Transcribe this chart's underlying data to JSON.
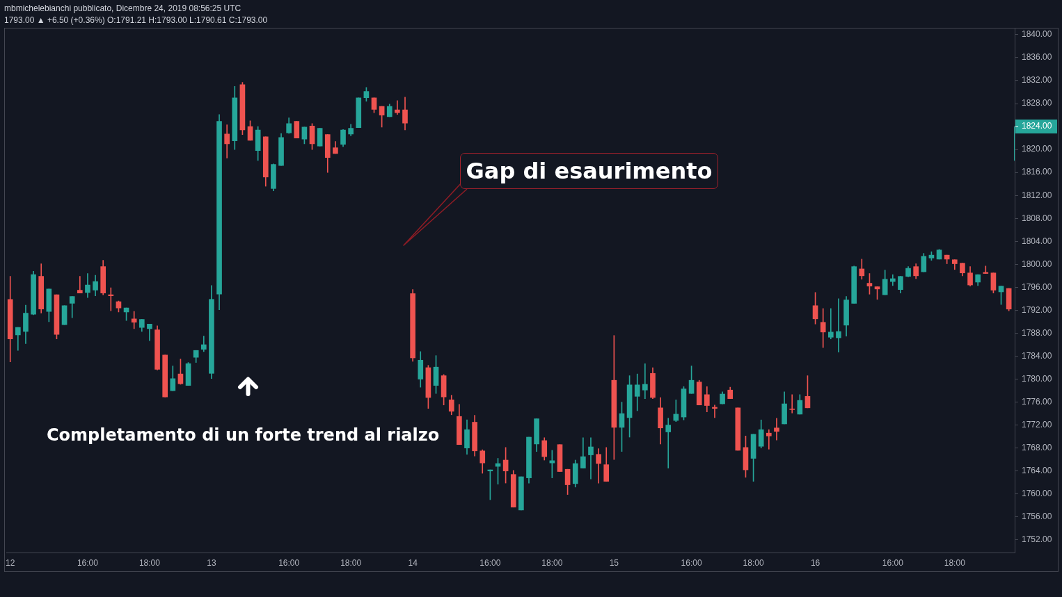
{
  "chart_data": {
    "type": "candlestick",
    "title": "mbmichelebianchi pubblicato, Dicembre 24, 2019 08:56:25 UTC",
    "subtitle": "1793.00 ▲ +6.50 (+0.36%) O:1791.21 H:1793.00 L:1790.61 C:1793.00",
    "annotations": [
      "Gap di esaurimento",
      "Completamento di un forte trend al rialzo"
    ],
    "categories": [
      "12",
      null,
      null,
      null,
      null,
      null,
      null,
      null,
      null,
      null,
      "16:00",
      null,
      null,
      null,
      null,
      null,
      null,
      null,
      "18:00",
      null,
      null,
      null,
      null,
      null,
      null,
      null,
      "13",
      null,
      null,
      null,
      null,
      null,
      null,
      null,
      null,
      null,
      "16:00",
      null,
      null,
      null,
      null,
      null,
      null,
      null,
      "18:00",
      null,
      null,
      null,
      null,
      null,
      null,
      null,
      "14",
      null,
      null,
      null,
      null,
      null,
      null,
      null,
      null,
      null,
      "16:00",
      null,
      null,
      null,
      null,
      null,
      null,
      null,
      "18:00",
      null,
      null,
      null,
      null,
      null,
      null,
      null,
      "15",
      null,
      null,
      null,
      null,
      null,
      null,
      null,
      null,
      null,
      "16:00",
      null,
      null,
      null,
      null,
      null,
      null,
      null,
      "18:00",
      null,
      null,
      null,
      null,
      null,
      null,
      null,
      "16",
      null,
      null,
      null,
      null,
      null,
      null,
      null,
      null,
      null,
      "16:00",
      null,
      null,
      null,
      null,
      null,
      null,
      null,
      "18:00",
      null,
      null,
      null,
      null,
      null,
      null,
      null,
      null
    ],
    "ohlc": [
      [
        1793.9,
        1797.9,
        1783.0,
        1787.0
      ],
      [
        1787.7,
        1789.0,
        1785.0,
        1789.0
      ],
      [
        1788.3,
        1792.9,
        1786.2,
        1791.5
      ],
      [
        1791.3,
        1798.8,
        1791.2,
        1798.2
      ],
      [
        1797.9,
        1800.1,
        1791.5,
        1792.2
      ],
      [
        1791.8,
        1795.7,
        1790.0,
        1795.7
      ],
      [
        1794.7,
        1794.7,
        1787.0,
        1787.8
      ],
      [
        1789.5,
        1792.8,
        1789.5,
        1792.8
      ],
      [
        1793.2,
        1794.4,
        1790.7,
        1794.4
      ],
      [
        1795.5,
        1797.9,
        1795.0,
        1795.0
      ],
      [
        1795.1,
        1798.4,
        1794.2,
        1796.4
      ],
      [
        1795.5,
        1798.1,
        1794.5,
        1797.0
      ],
      [
        1799.6,
        1800.7,
        1794.7,
        1795.0
      ],
      [
        1794.7,
        1795.9,
        1791.9,
        1794.5
      ],
      [
        1793.5,
        1793.6,
        1791.7,
        1792.4
      ],
      [
        1791.7,
        1792.4,
        1790.2,
        1792.4
      ],
      [
        1790.5,
        1791.8,
        1788.8,
        1789.9
      ],
      [
        1789.0,
        1790.4,
        1788.3,
        1790.4
      ],
      [
        1788.8,
        1789.6,
        1786.7,
        1789.6
      ],
      [
        1788.6,
        1789.3,
        1781.6,
        1781.7
      ],
      [
        1784.2,
        1784.2,
        1776.9,
        1776.9
      ],
      [
        1778.0,
        1782.3,
        1778.0,
        1780.1
      ],
      [
        1780.9,
        1783.5,
        1779.1,
        1779.2
      ],
      [
        1778.9,
        1782.9,
        1778.9,
        1782.7
      ],
      [
        1783.8,
        1785.0,
        1782.9,
        1785.0
      ],
      [
        1785.2,
        1787.5,
        1784.8,
        1786.0
      ],
      [
        1781.0,
        1796.3,
        1780.1,
        1793.9
      ],
      [
        1794.8,
        1826.1,
        1792.1,
        1824.9
      ],
      [
        1822.7,
        1824.3,
        1818.5,
        1821.0
      ],
      [
        1821.5,
        1831.0,
        1820.0,
        1829.0
      ],
      [
        1831.3,
        1831.7,
        1822.6,
        1823.4
      ],
      [
        1824.0,
        1825.0,
        1821.6,
        1821.6
      ],
      [
        1819.8,
        1824.0,
        1818.1,
        1823.4
      ],
      [
        1822.2,
        1822.2,
        1813.6,
        1815.2
      ],
      [
        1813.2,
        1817.5,
        1812.8,
        1817.4
      ],
      [
        1817.2,
        1822.8,
        1817.2,
        1822.1
      ],
      [
        1822.9,
        1825.5,
        1822.8,
        1824.5
      ],
      [
        1824.9,
        1824.9,
        1822.0,
        1822.0
      ],
      [
        1821.8,
        1823.9,
        1821.0,
        1823.9
      ],
      [
        1824.1,
        1824.5,
        1820.0,
        1821.0
      ],
      [
        1820.6,
        1823.7,
        1820.6,
        1823.7
      ],
      [
        1822.6,
        1822.6,
        1816.0,
        1818.6
      ],
      [
        1820.3,
        1821.4,
        1819.3,
        1819.3
      ],
      [
        1820.9,
        1823.5,
        1820.5,
        1823.4
      ],
      [
        1822.7,
        1824.4,
        1822.4,
        1823.7
      ],
      [
        1823.8,
        1829.0,
        1823.8,
        1829.0
      ],
      [
        1829.0,
        1830.8,
        1828.4,
        1830.1
      ],
      [
        1829.0,
        1829.0,
        1826.4,
        1827.0
      ],
      [
        1827.5,
        1827.5,
        1823.9,
        1826.0
      ],
      [
        1825.7,
        1827.9,
        1825.7,
        1827.5
      ],
      [
        1826.9,
        1828.5,
        1826.1,
        1826.4
      ],
      [
        1826.9,
        1829.1,
        1823.4,
        1824.6
      ],
      [
        1794.9,
        1795.6,
        1783.1,
        1783.7
      ],
      [
        1780.0,
        1784.8,
        1778.6,
        1783.3
      ],
      [
        1782.0,
        1782.4,
        1774.9,
        1776.8
      ],
      [
        1778.9,
        1784.1,
        1777.5,
        1782.1
      ],
      [
        1780.6,
        1780.8,
        1775.5,
        1776.9
      ],
      [
        1776.4,
        1777.2,
        1773.8,
        1774.4
      ],
      [
        1773.5,
        1775.6,
        1768.6,
        1768.6
      ],
      [
        1768.0,
        1772.9,
        1766.9,
        1771.2
      ],
      [
        1772.5,
        1773.7,
        1766.6,
        1767.5
      ],
      [
        1767.5,
        1767.7,
        1763.6,
        1765.4
      ],
      [
        1764.0,
        1764.2,
        1759.0,
        1764.2
      ],
      [
        1764.8,
        1766.2,
        1761.7,
        1765.3
      ],
      [
        1765.9,
        1768.1,
        1761.9,
        1764.0
      ],
      [
        1763.4,
        1764.1,
        1757.7,
        1757.7
      ],
      [
        1757.2,
        1763.0,
        1757.2,
        1763.0
      ],
      [
        1762.8,
        1769.9,
        1761.9,
        1769.9
      ],
      [
        1768.7,
        1773.1,
        1767.4,
        1773.1
      ],
      [
        1769.3,
        1769.8,
        1765.9,
        1766.5
      ],
      [
        1765.4,
        1767.6,
        1762.8,
        1765.8
      ],
      [
        1768.6,
        1768.6,
        1763.9,
        1763.9
      ],
      [
        1764.3,
        1764.3,
        1759.9,
        1761.6
      ],
      [
        1761.8,
        1765.9,
        1761.2,
        1765.3
      ],
      [
        1764.5,
        1769.8,
        1764.5,
        1766.5
      ],
      [
        1766.8,
        1769.8,
        1762.6,
        1768.2
      ],
      [
        1766.9,
        1767.9,
        1761.9,
        1765.3
      ],
      [
        1765.1,
        1768.1,
        1762.2,
        1762.2
      ],
      [
        1779.8,
        1787.6,
        1766.0,
        1771.6
      ],
      [
        1771.6,
        1776.0,
        1767.4,
        1774.0
      ],
      [
        1773.3,
        1780.6,
        1769.9,
        1779.0
      ],
      [
        1777.0,
        1780.9,
        1774.5,
        1779.0
      ],
      [
        1778.1,
        1782.7,
        1776.6,
        1779.1
      ],
      [
        1781.0,
        1782.0,
        1776.6,
        1776.8
      ],
      [
        1775.0,
        1776.8,
        1768.7,
        1771.5
      ],
      [
        1770.8,
        1773.2,
        1764.5,
        1772.0
      ],
      [
        1772.8,
        1776.4,
        1772.6,
        1773.9
      ],
      [
        1773.4,
        1778.7,
        1772.9,
        1778.3
      ],
      [
        1777.5,
        1782.3,
        1777.5,
        1779.8
      ],
      [
        1779.5,
        1779.8,
        1775.5,
        1775.5
      ],
      [
        1777.3,
        1778.7,
        1774.3,
        1775.4
      ],
      [
        1775.1,
        1775.5,
        1773.3,
        1774.9
      ],
      [
        1775.7,
        1777.8,
        1775.7,
        1777.4
      ],
      [
        1778.1,
        1778.6,
        1776.6,
        1776.6
      ],
      [
        1775.0,
        1775.0,
        1767.6,
        1767.6
      ],
      [
        1768.1,
        1770.1,
        1762.9,
        1764.2
      ],
      [
        1766.2,
        1770.4,
        1762.2,
        1770.4
      ],
      [
        1768.3,
        1772.9,
        1768.0,
        1771.2
      ],
      [
        1770.6,
        1771.2,
        1767.8,
        1770.1
      ],
      [
        1771.5,
        1773.2,
        1769.4,
        1770.9
      ],
      [
        1772.2,
        1777.8,
        1772.2,
        1775.7
      ],
      [
        1774.8,
        1777.3,
        1774.1,
        1774.7
      ],
      [
        1773.9,
        1777.3,
        1773.9,
        1776.3
      ],
      [
        1777.0,
        1780.6,
        1775.0,
        1775.0
      ],
      [
        1792.8,
        1795.1,
        1789.6,
        1790.5
      ],
      [
        1789.9,
        1792.3,
        1785.5,
        1788.2
      ],
      [
        1787.3,
        1792.3,
        1787.0,
        1788.2
      ],
      [
        1787.2,
        1794.0,
        1784.7,
        1788.3
      ],
      [
        1789.4,
        1794.4,
        1787.5,
        1793.8
      ],
      [
        1793.2,
        1799.7,
        1793.2,
        1799.6
      ],
      [
        1799.2,
        1800.9,
        1797.4,
        1798.0
      ],
      [
        1796.7,
        1798.4,
        1794.8,
        1796.2
      ],
      [
        1796.1,
        1796.1,
        1793.9,
        1795.7
      ],
      [
        1794.7,
        1799.0,
        1794.7,
        1797.4
      ],
      [
        1797.0,
        1798.2,
        1796.3,
        1797.5
      ],
      [
        1795.6,
        1797.9,
        1795.0,
        1797.9
      ],
      [
        1797.9,
        1799.6,
        1797.8,
        1799.3
      ],
      [
        1799.6,
        1800.1,
        1797.5,
        1798.0
      ],
      [
        1798.7,
        1801.9,
        1798.7,
        1801.4
      ],
      [
        1801.1,
        1802.2,
        1800.7,
        1801.6
      ],
      [
        1800.9,
        1802.6,
        1800.9,
        1802.5
      ],
      [
        1801.6,
        1801.6,
        1800.1,
        1800.9
      ],
      [
        1800.8,
        1800.8,
        1799.1,
        1800.1
      ],
      [
        1800.2,
        1800.2,
        1798.0,
        1798.5
      ],
      [
        1798.5,
        1799.6,
        1796.2,
        1796.4
      ],
      [
        1796.9,
        1798.2,
        1796.3,
        1798.2
      ],
      [
        1798.6,
        1799.7,
        1798.4,
        1798.4
      ],
      [
        1798.5,
        1798.5,
        1795.0,
        1795.5
      ],
      [
        1795.2,
        1796.2,
        1793.0,
        1796.2
      ],
      [
        1795.8,
        1795.8,
        1791.9,
        1792.2
      ],
      [
        1818.1,
        1824.0,
        1818.1,
        1824.0
      ]
    ],
    "colors": [
      "#ef5350",
      "#26a69a",
      "#26a69a",
      "#26a69a",
      "#ef5350",
      "#26a69a",
      "#ef5350",
      "#26a69a",
      "#26a69a",
      "#ef5350",
      "#26a69a",
      "#26a69a",
      "#ef5350",
      "#ef5350",
      "#ef5350",
      "#26a69a",
      "#ef5350",
      "#26a69a",
      "#26a69a",
      "#ef5350",
      "#ef5350",
      "#26a69a",
      "#ef5350",
      "#26a69a",
      "#26a69a",
      "#26a69a",
      "#26a69a",
      "#26a69a",
      "#ef5350",
      "#26a69a",
      "#ef5350",
      "#ef5350",
      "#26a69a",
      "#ef5350",
      "#26a69a",
      "#26a69a",
      "#26a69a",
      "#ef5350",
      "#26a69a",
      "#ef5350",
      "#26a69a",
      "#ef5350",
      "#ef5350",
      "#26a69a",
      "#26a69a",
      "#26a69a",
      "#26a69a",
      "#ef5350",
      "#ef5350",
      "#26a69a",
      "#ef5350",
      "#ef5350",
      "#ef5350",
      "#26a69a",
      "#ef5350",
      "#26a69a",
      "#ef5350",
      "#ef5350",
      "#ef5350",
      "#26a69a",
      "#ef5350",
      "#ef5350",
      "#26a69a",
      "#26a69a",
      "#ef5350",
      "#ef5350",
      "#26a69a",
      "#26a69a",
      "#26a69a",
      "#ef5350",
      "#26a69a",
      "#ef5350",
      "#ef5350",
      "#26a69a",
      "#26a69a",
      "#26a69a",
      "#ef5350",
      "#ef5350",
      "#ef5350",
      "#26a69a",
      "#26a69a",
      "#26a69a",
      "#26a69a",
      "#ef5350",
      "#ef5350",
      "#26a69a",
      "#26a69a",
      "#26a69a",
      "#26a69a",
      "#ef5350",
      "#ef5350",
      "#ef5350",
      "#26a69a",
      "#ef5350",
      "#ef5350",
      "#ef5350",
      "#26a69a",
      "#26a69a",
      "#ef5350",
      "#ef5350",
      "#26a69a",
      "#ef5350",
      "#26a69a",
      "#ef5350",
      "#ef5350",
      "#ef5350",
      "#26a69a",
      "#26a69a",
      "#26a69a",
      "#26a69a",
      "#ef5350",
      "#ef5350",
      "#ef5350",
      "#26a69a",
      "#26a69a",
      "#26a69a",
      "#26a69a",
      "#ef5350",
      "#26a69a",
      "#26a69a",
      "#26a69a",
      "#ef5350",
      "#ef5350",
      "#ef5350",
      "#ef5350",
      "#26a69a",
      "#ef5350",
      "#ef5350",
      "#26a69a",
      "#ef5350",
      "#26a69a"
    ],
    "ylim": [
      1749.8,
      1841.2
    ],
    "yticks": [
      {
        "value": 1752,
        "label": "1752.00"
      },
      {
        "value": 1756,
        "label": "1756.00"
      },
      {
        "value": 1760,
        "label": "1760.00"
      },
      {
        "value": 1764,
        "label": "1764.00"
      },
      {
        "value": 1768,
        "label": "1768.00"
      },
      {
        "value": 1772,
        "label": "1772.00"
      },
      {
        "value": 1776,
        "label": "1776.00"
      },
      {
        "value": 1780,
        "label": "1780.00"
      },
      {
        "value": 1784,
        "label": "1784.00"
      },
      {
        "value": 1788,
        "label": "1788.00"
      },
      {
        "value": 1792,
        "label": "1792.00"
      },
      {
        "value": 1796,
        "label": "1796.00"
      },
      {
        "value": 1800,
        "label": "1800.00"
      },
      {
        "value": 1804,
        "label": "1804.00"
      },
      {
        "value": 1808,
        "label": "1808.00"
      },
      {
        "value": 1812,
        "label": "1812.00"
      },
      {
        "value": 1816,
        "label": "1816.00"
      },
      {
        "value": 1820,
        "label": "1820.00"
      },
      {
        "value": 1824,
        "label": "1824.00"
      },
      {
        "value": 1828,
        "label": "1828.00"
      },
      {
        "value": 1832,
        "label": "1832.00"
      },
      {
        "value": 1836,
        "label": "1836.00"
      },
      {
        "value": 1840,
        "label": "1840.00"
      }
    ]
  }
}
